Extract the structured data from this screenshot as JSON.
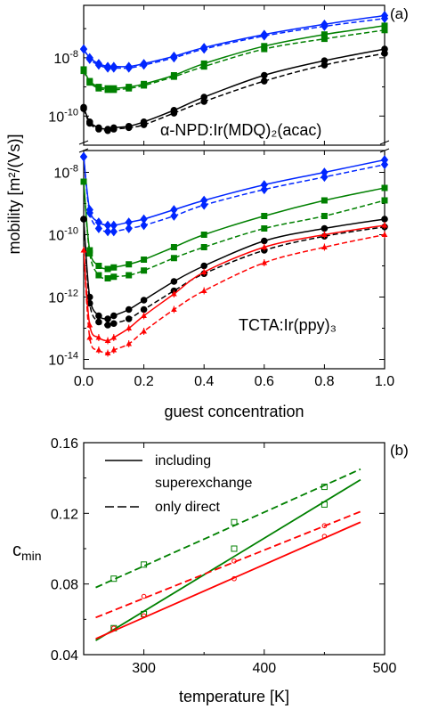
{
  "figure": {
    "panels": [
      "(a)",
      "(b)"
    ]
  },
  "chart_data": [
    {
      "type": "line",
      "panel": "(a)",
      "subpanel": "top",
      "annotation": "α-NPD:Ir(MDQ)₂(acac)",
      "xlim": [
        0,
        1
      ],
      "ylim_log": [
        -11,
        -6.2
      ],
      "y_ticks": [
        {
          "exp": -8,
          "label_base": "10",
          "label_exp": "-8"
        },
        {
          "exp": -10,
          "label_base": "10",
          "label_exp": "-10"
        }
      ],
      "colors": {
        "blue": "#0026ff",
        "green": "#008000",
        "black": "#000000"
      },
      "series": [
        {
          "color": "blue",
          "style": "solid",
          "marker": "diamond",
          "x": [
            0.0,
            0.02,
            0.05,
            0.08,
            0.1,
            0.15,
            0.2,
            0.3,
            0.4,
            0.6,
            0.8,
            1.0
          ],
          "y": [
            -7.7,
            -8.0,
            -8.2,
            -8.3,
            -8.3,
            -8.3,
            -8.2,
            -7.95,
            -7.65,
            -7.2,
            -6.85,
            -6.55
          ]
        },
        {
          "color": "blue",
          "style": "dashed",
          "marker": "diamond",
          "x": [
            0.0,
            0.02,
            0.05,
            0.08,
            0.1,
            0.15,
            0.2,
            0.3,
            0.4,
            0.6,
            0.8,
            1.0
          ],
          "y": [
            -7.7,
            -8.05,
            -8.25,
            -8.35,
            -8.35,
            -8.35,
            -8.25,
            -8.0,
            -7.7,
            -7.25,
            -6.92,
            -6.65
          ]
        },
        {
          "color": "green",
          "style": "solid",
          "marker": "square",
          "x": [
            0.0,
            0.02,
            0.05,
            0.08,
            0.1,
            0.15,
            0.2,
            0.3,
            0.4,
            0.6,
            0.8,
            1.0
          ],
          "y": [
            -8.4,
            -8.8,
            -9.0,
            -9.05,
            -9.05,
            -9.0,
            -8.9,
            -8.6,
            -8.2,
            -7.6,
            -7.2,
            -6.9
          ]
        },
        {
          "color": "green",
          "style": "dashed",
          "marker": "square",
          "x": [
            0.0,
            0.02,
            0.05,
            0.08,
            0.1,
            0.15,
            0.2,
            0.3,
            0.4,
            0.6,
            0.8,
            1.0
          ],
          "y": [
            -8.45,
            -8.85,
            -9.05,
            -9.1,
            -9.1,
            -9.05,
            -8.95,
            -8.65,
            -8.3,
            -7.7,
            -7.35,
            -7.05
          ]
        },
        {
          "color": "black",
          "style": "solid",
          "marker": "circle",
          "x": [
            0.0,
            0.02,
            0.05,
            0.08,
            0.1,
            0.15,
            0.2,
            0.3,
            0.4,
            0.6,
            0.8,
            1.0
          ],
          "y": [
            -9.7,
            -10.2,
            -10.4,
            -10.45,
            -10.4,
            -10.35,
            -10.2,
            -9.8,
            -9.35,
            -8.6,
            -8.1,
            -7.7
          ]
        },
        {
          "color": "black",
          "style": "dashed",
          "marker": "circle",
          "x": [
            0.0,
            0.02,
            0.05,
            0.08,
            0.1,
            0.15,
            0.2,
            0.3,
            0.4,
            0.6,
            0.8,
            1.0
          ],
          "y": [
            -9.75,
            -10.25,
            -10.45,
            -10.5,
            -10.45,
            -10.4,
            -10.3,
            -9.9,
            -9.5,
            -8.8,
            -8.25,
            -7.85
          ]
        }
      ]
    },
    {
      "type": "line",
      "panel": "(a)",
      "subpanel": "bottom",
      "annotation": "TCTA:Ir(ppy)₃",
      "xlabel": "guest concentration",
      "ylabel": "mobility [m²/(Vs)]",
      "xlim": [
        0,
        1
      ],
      "ylim_log": [
        -14.3,
        -7.3
      ],
      "x_ticks": [
        0.0,
        0.2,
        0.4,
        0.6,
        0.8,
        1.0
      ],
      "x_tick_labels": [
        "0.0",
        "0.2",
        "0.4",
        "0.6",
        "0.8",
        "1.0"
      ],
      "y_ticks": [
        {
          "exp": -8,
          "label_base": "10",
          "label_exp": "-8"
        },
        {
          "exp": -10,
          "label_base": "10",
          "label_exp": "-10"
        },
        {
          "exp": -12,
          "label_base": "10",
          "label_exp": "-12"
        },
        {
          "exp": -14,
          "label_base": "10",
          "label_exp": "-14"
        }
      ],
      "colors": {
        "blue": "#0026ff",
        "green": "#008000",
        "black": "#000000",
        "red": "#ff0000"
      },
      "series": [
        {
          "color": "blue",
          "style": "solid",
          "marker": "diamond",
          "x": [
            0.0,
            0.02,
            0.05,
            0.08,
            0.1,
            0.15,
            0.2,
            0.3,
            0.4,
            0.6,
            0.8,
            1.0
          ],
          "y": [
            -7.5,
            -9.2,
            -9.6,
            -9.7,
            -9.7,
            -9.6,
            -9.5,
            -9.2,
            -8.9,
            -8.4,
            -8.0,
            -7.6
          ]
        },
        {
          "color": "blue",
          "style": "dashed",
          "marker": "diamond",
          "x": [
            0.0,
            0.02,
            0.05,
            0.08,
            0.1,
            0.15,
            0.2,
            0.3,
            0.4,
            0.6,
            0.8,
            1.0
          ],
          "y": [
            -7.5,
            -9.3,
            -9.8,
            -9.9,
            -9.9,
            -9.8,
            -9.7,
            -9.4,
            -9.05,
            -8.55,
            -8.15,
            -7.75
          ]
        },
        {
          "color": "green",
          "style": "solid",
          "marker": "square",
          "x": [
            0.0,
            0.02,
            0.05,
            0.08,
            0.1,
            0.15,
            0.2,
            0.3,
            0.4,
            0.6,
            0.8,
            1.0
          ],
          "y": [
            -8.3,
            -10.5,
            -11.0,
            -11.1,
            -11.05,
            -10.95,
            -10.8,
            -10.4,
            -10.0,
            -9.4,
            -8.9,
            -8.5
          ]
        },
        {
          "color": "green",
          "style": "dashed",
          "marker": "square",
          "x": [
            0.0,
            0.02,
            0.05,
            0.08,
            0.1,
            0.15,
            0.2,
            0.3,
            0.4,
            0.6,
            0.8,
            1.0
          ],
          "y": [
            -8.3,
            -10.6,
            -11.3,
            -11.4,
            -11.35,
            -11.3,
            -11.15,
            -10.75,
            -10.4,
            -9.8,
            -9.4,
            -8.9
          ]
        },
        {
          "color": "black",
          "style": "solid",
          "marker": "circle",
          "x": [
            0.0,
            0.02,
            0.05,
            0.08,
            0.1,
            0.15,
            0.2,
            0.3,
            0.4,
            0.6,
            0.8,
            1.0
          ],
          "y": [
            -9.5,
            -12.0,
            -12.6,
            -12.7,
            -12.6,
            -12.4,
            -12.1,
            -11.5,
            -11.0,
            -10.2,
            -9.8,
            -9.5
          ]
        },
        {
          "color": "black",
          "style": "dashed",
          "marker": "circle",
          "x": [
            0.0,
            0.02,
            0.05,
            0.08,
            0.1,
            0.15,
            0.2,
            0.3,
            0.4,
            0.6,
            0.8,
            1.0
          ],
          "y": [
            -9.5,
            -12.2,
            -12.8,
            -12.9,
            -12.85,
            -12.7,
            -12.4,
            -11.8,
            -11.25,
            -10.5,
            -10.05,
            -9.75
          ]
        },
        {
          "color": "red",
          "style": "solid",
          "marker": "triangle",
          "x": [
            0.0,
            0.02,
            0.05,
            0.08,
            0.1,
            0.15,
            0.2,
            0.3,
            0.4,
            0.6,
            0.8,
            1.0
          ],
          "y": [
            -10.5,
            -12.9,
            -13.3,
            -13.4,
            -13.3,
            -13.0,
            -12.6,
            -11.9,
            -11.2,
            -10.4,
            -10.0,
            -9.7
          ]
        },
        {
          "color": "red",
          "style": "dashed",
          "marker": "triangle",
          "x": [
            0.0,
            0.02,
            0.05,
            0.08,
            0.1,
            0.15,
            0.2,
            0.3,
            0.4,
            0.6,
            0.8,
            1.0
          ],
          "y": [
            -10.5,
            -13.3,
            -13.7,
            -13.8,
            -13.7,
            -13.5,
            -13.1,
            -12.4,
            -11.8,
            -10.9,
            -10.4,
            -10.0
          ]
        }
      ]
    },
    {
      "type": "line",
      "panel": "(b)",
      "xlabel": "temperature [K]",
      "ylabel_base": "c",
      "ylabel_sub": "min",
      "xlim": [
        250,
        500
      ],
      "ylim": [
        0.04,
        0.16
      ],
      "x_ticks": [
        300,
        400,
        500
      ],
      "x_tick_labels": [
        "300",
        "400",
        "500"
      ],
      "y_ticks": [
        0.04,
        0.08,
        0.12,
        0.16
      ],
      "y_tick_labels": [
        "0.04",
        "0.08",
        "0.12",
        "0.16"
      ],
      "legend": {
        "position": "top-left",
        "entries": [
          {
            "style": "solid",
            "label": "including"
          },
          {
            "style": "none",
            "label": "superexchange"
          },
          {
            "style": "dashed",
            "label": "only direct"
          }
        ]
      },
      "colors": {
        "green": "#008000",
        "red": "#ff0000"
      },
      "series": [
        {
          "color": "green",
          "style": "solid",
          "marker": "square",
          "line_x": [
            260,
            480
          ],
          "line_y": [
            0.048,
            0.139
          ],
          "x": [
            275,
            300,
            375,
            450
          ],
          "y": [
            0.055,
            0.063,
            0.1,
            0.125
          ]
        },
        {
          "color": "green",
          "style": "dashed",
          "marker": "square",
          "line_x": [
            260,
            480
          ],
          "line_y": [
            0.078,
            0.145
          ],
          "x": [
            275,
            300,
            375,
            450
          ],
          "y": [
            0.083,
            0.091,
            0.115,
            0.135
          ]
        },
        {
          "color": "red",
          "style": "solid",
          "marker": "circle",
          "line_x": [
            260,
            480
          ],
          "line_y": [
            0.049,
            0.115
          ],
          "x": [
            275,
            300,
            375,
            450
          ],
          "y": [
            0.055,
            0.062,
            0.083,
            0.107
          ]
        },
        {
          "color": "red",
          "style": "dashed",
          "marker": "circle",
          "line_x": [
            260,
            480
          ],
          "line_y": [
            0.061,
            0.121
          ],
          "x": [
            300,
            375,
            450
          ],
          "y": [
            0.073,
            0.093,
            0.113
          ]
        }
      ]
    }
  ]
}
